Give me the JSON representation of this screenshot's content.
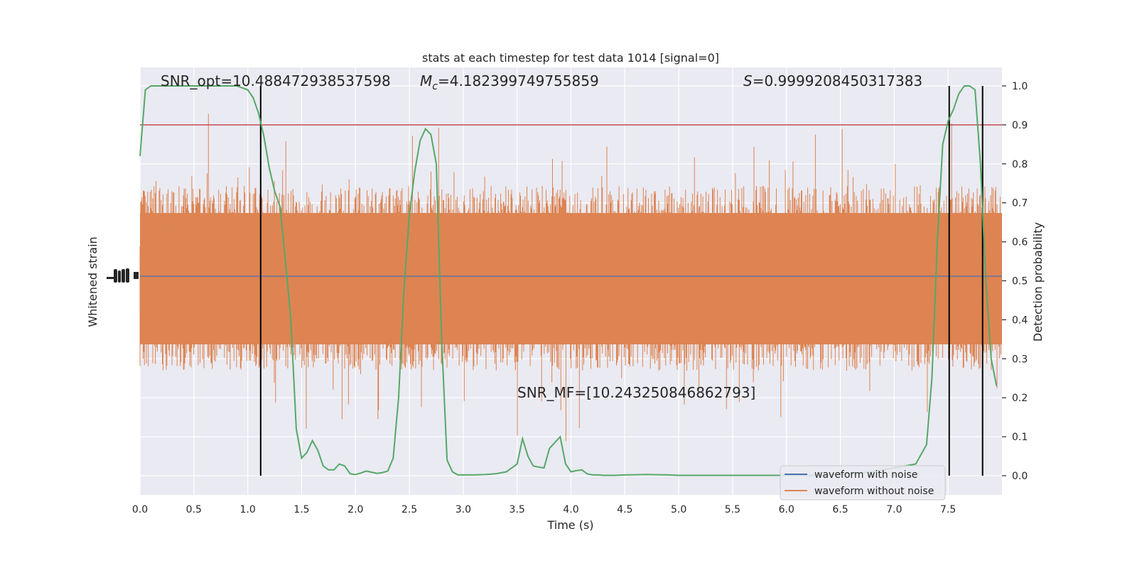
{
  "chart_data": {
    "type": "line",
    "title": "stats at each timestep for test data 1014 [signal=0]",
    "xlabel": "Time (s)",
    "ylabel_left": "Whitened strain",
    "ylabel_right": "Detection probability",
    "xlim": [
      0,
      8
    ],
    "ylim_right": [
      0,
      1
    ],
    "x_ticks": [
      "0.0",
      "0.5",
      "1.0",
      "1.5",
      "2.0",
      "2.5",
      "3.0",
      "3.5",
      "4.0",
      "4.5",
      "5.0",
      "5.5",
      "6.0",
      "6.5",
      "7.0",
      "7.5"
    ],
    "y_ticks_right": [
      "0.0",
      "0.1",
      "0.2",
      "0.3",
      "0.4",
      "0.5",
      "0.6",
      "0.7",
      "0.8",
      "0.9",
      "1.0"
    ],
    "annotations": {
      "snr_opt": "SNR_opt=10.488472938537598",
      "mc_symbol": "M",
      "mc_sub": "c",
      "mc_value": "=4.182399749755859",
      "s_symbol": "S",
      "s_value": "=0.9999208450317383",
      "snr_mf": "SNR_MF=[10.243250846862793]"
    },
    "threshold": 0.9,
    "vertical_lines_x": [
      1.12,
      7.51,
      7.82
    ],
    "series": [
      {
        "name": "waveform with noise",
        "color": "#4c72b0",
        "style": "line"
      },
      {
        "name": "waveform without noise",
        "color": "#dd8452",
        "style": "dense-noise"
      },
      {
        "color": "#55a868",
        "axis": "right",
        "x": [
          0.0,
          0.05,
          0.1,
          0.2,
          0.3,
          0.4,
          0.5,
          0.6,
          0.7,
          0.8,
          0.9,
          1.0,
          1.05,
          1.1,
          1.15,
          1.2,
          1.25,
          1.3,
          1.35,
          1.4,
          1.45,
          1.5,
          1.55,
          1.6,
          1.65,
          1.7,
          1.75,
          1.8,
          1.85,
          1.9,
          1.95,
          2.0,
          2.05,
          2.1,
          2.15,
          2.2,
          2.25,
          2.3,
          2.35,
          2.4,
          2.45,
          2.5,
          2.55,
          2.6,
          2.65,
          2.7,
          2.75,
          2.8,
          2.85,
          2.9,
          2.95,
          3.0,
          3.05,
          3.1,
          3.2,
          3.3,
          3.4,
          3.5,
          3.55,
          3.6,
          3.65,
          3.7,
          3.75,
          3.8,
          3.9,
          3.95,
          4.0,
          4.05,
          4.1,
          4.15,
          4.2,
          4.25,
          4.3,
          4.35,
          4.4,
          4.5,
          4.7,
          4.9,
          5.0,
          5.2,
          5.4,
          5.6,
          5.8,
          6.0,
          6.2,
          6.4,
          6.6,
          6.8,
          7.0,
          7.2,
          7.3,
          7.35,
          7.4,
          7.45,
          7.5,
          7.55,
          7.6,
          7.65,
          7.7,
          7.75,
          7.8,
          7.85,
          7.9,
          7.95
        ],
        "y": [
          0.82,
          0.99,
          1.0,
          1.0,
          1.0,
          1.0,
          1.0,
          1.0,
          1.0,
          1.0,
          1.0,
          0.99,
          0.97,
          0.93,
          0.87,
          0.79,
          0.73,
          0.69,
          0.55,
          0.4,
          0.12,
          0.045,
          0.06,
          0.09,
          0.065,
          0.025,
          0.015,
          0.015,
          0.03,
          0.025,
          0.005,
          0.003,
          0.007,
          0.012,
          0.009,
          0.006,
          0.008,
          0.012,
          0.045,
          0.2,
          0.48,
          0.67,
          0.78,
          0.86,
          0.89,
          0.875,
          0.8,
          0.35,
          0.04,
          0.01,
          0.002,
          0.002,
          0.002,
          0.002,
          0.003,
          0.005,
          0.01,
          0.03,
          0.095,
          0.05,
          0.025,
          0.022,
          0.02,
          0.07,
          0.1,
          0.03,
          0.01,
          0.013,
          0.015,
          0.005,
          0.002,
          0.002,
          0.001,
          0.001,
          0.001,
          0.002,
          0.003,
          0.002,
          0.001,
          0.001,
          0.001,
          0.001,
          0.001,
          0.001,
          0.001,
          0.002,
          0.005,
          0.01,
          0.02,
          0.03,
          0.08,
          0.25,
          0.6,
          0.85,
          0.91,
          0.94,
          0.98,
          1.0,
          1.0,
          0.99,
          0.8,
          0.5,
          0.3,
          0.23
        ]
      }
    ],
    "legend_position": "lower-right"
  }
}
